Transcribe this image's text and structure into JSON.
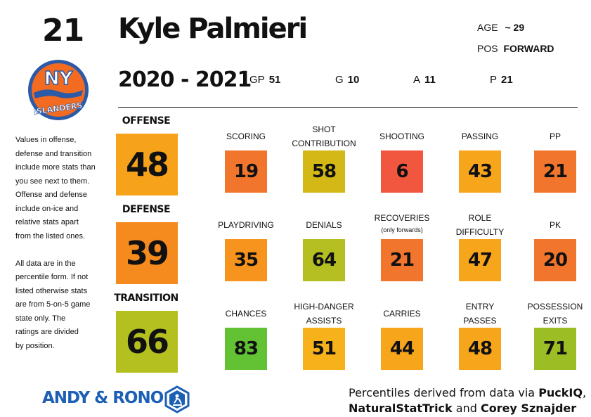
{
  "jersey_number": "21",
  "player_name": "Kyle Palmieri",
  "age_label": "AGE",
  "age_value": "~ 29",
  "pos_label": "POS",
  "pos_value": "FORWARD",
  "season": "2020 - 2021",
  "stats": [
    {
      "label": "GP",
      "value": "51"
    },
    {
      "label": "G",
      "value": "10"
    },
    {
      "label": "A",
      "value": "11"
    },
    {
      "label": "P",
      "value": "21"
    }
  ],
  "categories": [
    {
      "label": "OFFENSE",
      "value": "48",
      "color": "#f7a21b"
    },
    {
      "label": "DEFENSE",
      "value": "39",
      "color": "#f58b1f"
    },
    {
      "label": "TRANSITION",
      "value": "66",
      "color": "#b3c01f"
    }
  ],
  "rows": [
    [
      {
        "label": "SCORING",
        "value": "19",
        "color": "#f2752d"
      },
      {
        "label": "SHOT\nCONTRIBUTION",
        "value": "58",
        "color": "#d3b816"
      },
      {
        "label": "SHOOTING",
        "value": "6",
        "color": "#f1563f"
      },
      {
        "label": "PASSING",
        "value": "43",
        "color": "#f7a51b"
      },
      {
        "label": "PP",
        "value": "21",
        "color": "#f2752d"
      }
    ],
    [
      {
        "label": "PLAYDRIVING",
        "value": "35",
        "color": "#f7941d"
      },
      {
        "label": "DENIALS",
        "value": "64",
        "color": "#b5bf22"
      },
      {
        "label": "RECOVERIES",
        "note": "(only forwards)",
        "value": "21",
        "color": "#f2752d"
      },
      {
        "label": "ROLE\nDIFFICULTY",
        "value": "47",
        "color": "#f7a51b"
      },
      {
        "label": "PK",
        "value": "20",
        "color": "#f2752d"
      }
    ],
    [
      {
        "label": "CHANCES",
        "value": "83",
        "color": "#62c234"
      },
      {
        "label": "HIGH-DANGER\nASSISTS",
        "value": "51",
        "color": "#f7b21b"
      },
      {
        "label": "CARRIES",
        "value": "44",
        "color": "#f7a51b"
      },
      {
        "label": "ENTRY\nPASSES",
        "value": "48",
        "color": "#f7a51b"
      },
      {
        "label": "POSSESSION\nEXITS",
        "value": "71",
        "color": "#9cbd24"
      }
    ]
  ],
  "note_lines": [
    "Values in offense,",
    "defense and transition",
    "include more stats than",
    "you see next to them.",
    "Offense and defense",
    "include on-ice and",
    "relative stats apart",
    "from the listed ones.",
    "",
    "All data are in the",
    "percentile form. If not",
    "listed otherwise stats",
    "are from 5-on-5 game",
    "state only. The",
    "ratings are divided",
    "by position."
  ],
  "brand": "ANDY & RONO",
  "credit": {
    "prefix": "Percentiles derived from data via ",
    "src1": "PuckIQ",
    "sep1": ",",
    "src2": "NaturalStatTrick",
    "mid": " and ",
    "src3": "Corey Sznajder"
  },
  "logo": {
    "text_top": "NY",
    "text_bottom": "ISLANDERS",
    "orange": "#f26b21",
    "blue": "#2a5aa8"
  }
}
